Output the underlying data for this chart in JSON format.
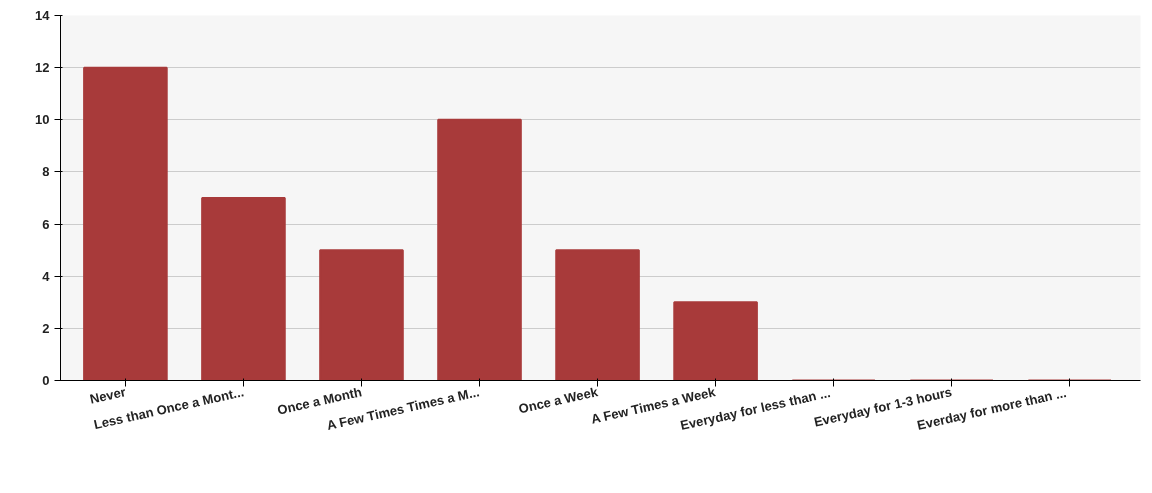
{
  "chart_data": {
    "type": "bar",
    "categories": [
      "Never",
      "Less than Once a Mont...",
      "Once a Month",
      "A Few Times Times a M...",
      "Once a Week",
      "A Few Times a Week",
      "Everyday for less than  ...",
      "Everyday for 1-3 hours",
      "Everday for more than  ..."
    ],
    "values": [
      12,
      7,
      5,
      10,
      5,
      3,
      0,
      0,
      0
    ],
    "color": "#a83a3a",
    "ylim": [
      0,
      14
    ],
    "yticks": [
      0,
      2,
      4,
      6,
      8,
      10,
      12,
      14
    ],
    "grid": "y"
  }
}
